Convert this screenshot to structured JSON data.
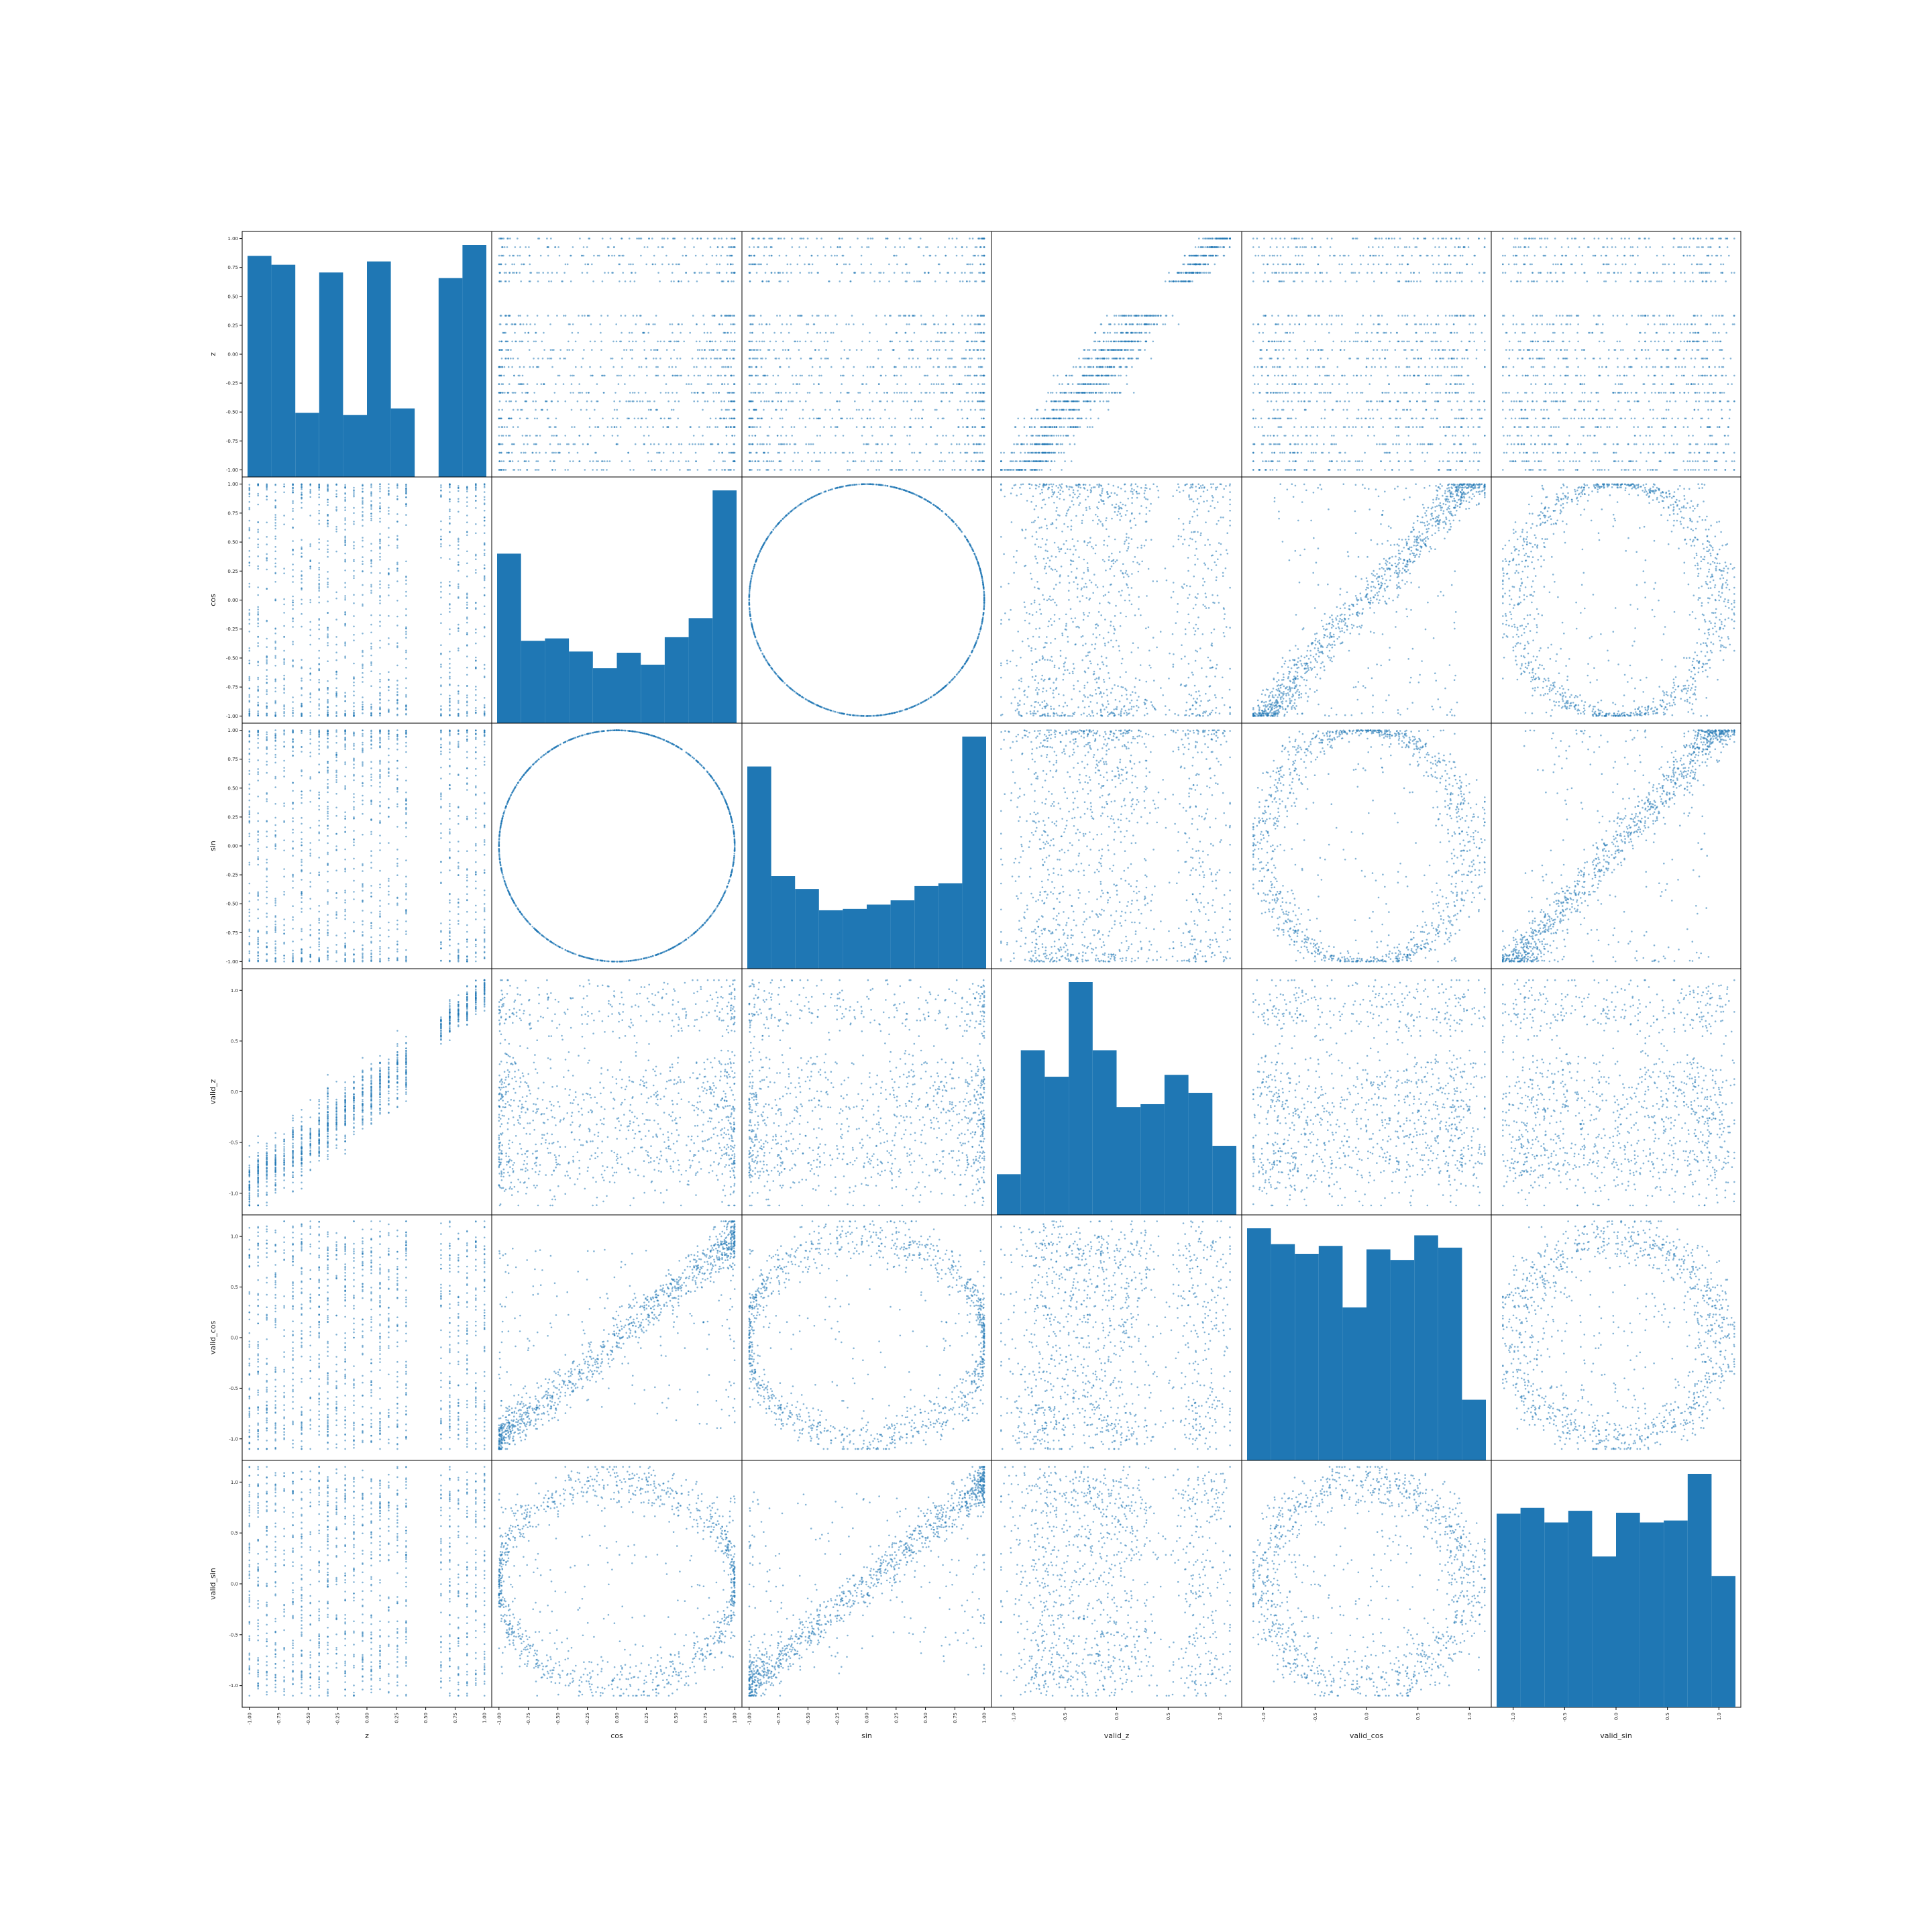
{
  "chart_data": {
    "type": "scatter_matrix",
    "variables": [
      "z",
      "cos",
      "sin",
      "valid_z",
      "valid_cos",
      "valid_sin"
    ],
    "ranges": {
      "z": [
        -1.05,
        1.05
      ],
      "cos": [
        -1.05,
        1.05
      ],
      "sin": [
        -1.05,
        1.05
      ],
      "valid_z": [
        -1.2,
        1.2
      ],
      "valid_cos": [
        -1.2,
        1.2
      ],
      "valid_sin": [
        -1.2,
        1.2
      ]
    },
    "ticks": {
      "z": [
        "-1.00",
        "-0.75",
        "-0.50",
        "-0.25",
        "0.00",
        "0.25",
        "0.50",
        "0.75",
        "1.00"
      ],
      "cos": [
        "-1.00",
        "-0.75",
        "-0.50",
        "-0.25",
        "0.00",
        "0.25",
        "0.50",
        "0.75",
        "1.00"
      ],
      "sin": [
        "-1.00",
        "-0.75",
        "-0.50",
        "-0.25",
        "0.00",
        "0.25",
        "0.50",
        "0.75",
        "1.00"
      ],
      "valid_z": [
        "-1.0",
        "-0.5",
        "0.0",
        "0.5",
        "1.0"
      ],
      "valid_cos": [
        "-1.0",
        "-0.5",
        "0.0",
        "0.5",
        "1.0"
      ],
      "valid_sin": [
        "-1.0",
        "-0.5",
        "0.0",
        "0.5",
        "1.0"
      ]
    },
    "tick_values": {
      "z": [
        -1,
        -0.75,
        -0.5,
        -0.25,
        0,
        0.25,
        0.5,
        0.75,
        1
      ],
      "cos": [
        -1,
        -0.75,
        -0.5,
        -0.25,
        0,
        0.25,
        0.5,
        0.75,
        1
      ],
      "sin": [
        -1,
        -0.75,
        -0.5,
        -0.25,
        0,
        0.25,
        0.5,
        0.75,
        1
      ],
      "valid_z": [
        -1,
        -0.5,
        0,
        0.5,
        1
      ],
      "valid_cos": [
        -1,
        -0.5,
        0,
        0.5,
        1
      ],
      "valid_sin": [
        -1,
        -0.5,
        0,
        0.5,
        1
      ]
    },
    "z_levels": [
      -1.0,
      -0.926,
      -0.852,
      -0.778,
      -0.704,
      -0.63,
      -0.556,
      -0.481,
      -0.407,
      -0.333,
      -0.259,
      -0.185,
      -0.111,
      -0.037,
      0.037,
      0.111,
      0.185,
      0.259,
      0.333,
      0.63,
      0.704,
      0.778,
      0.852,
      0.926,
      1.0
    ],
    "histograms": {
      "z": {
        "edges": [
          -1.0,
          -0.8,
          -0.6,
          -0.4,
          -0.2,
          0.0,
          0.2,
          0.4,
          0.6,
          0.8,
          1.0
        ],
        "counts": [
          2000,
          1920,
          580,
          1850,
          560,
          1950,
          620,
          0,
          1800,
          2100
        ]
      },
      "cos": {
        "edges": [
          -1.0,
          -0.8,
          -0.6,
          -0.4,
          -0.2,
          0.0,
          0.2,
          0.4,
          0.6,
          0.8,
          1.0
        ],
        "counts": [
          1420,
          690,
          710,
          600,
          460,
          590,
          490,
          720,
          880,
          1950
        ]
      },
      "sin": {
        "edges": [
          -1.0,
          -0.8,
          -0.6,
          -0.4,
          -0.2,
          0.0,
          0.2,
          0.4,
          0.6,
          0.8,
          1.0
        ],
        "counts": [
          1420,
          650,
          560,
          410,
          420,
          450,
          480,
          580,
          600,
          1630
        ]
      },
      "valid_z": {
        "edges": [
          -1.0,
          -0.78,
          -0.56,
          -0.34,
          -0.12,
          0.1,
          0.32,
          0.54,
          0.76,
          0.98,
          1.2
        ],
        "counts": [
          430,
          1740,
          1460,
          2460,
          1740,
          1140,
          1170,
          1480,
          1290,
          730
        ]
      },
      "valid_cos": {
        "edges": [
          -1.08,
          -0.85,
          -0.62,
          -0.39,
          -0.16,
          0.07,
          0.3,
          0.53,
          0.76,
          0.99,
          1.22
        ],
        "counts": [
          2640,
          2460,
          2350,
          2440,
          1740,
          2400,
          2280,
          2560,
          2420,
          690
        ]
      },
      "valid_sin": {
        "edges": [
          -1.08,
          -0.85,
          -0.62,
          -0.39,
          -0.16,
          0.07,
          0.3,
          0.53,
          0.76,
          0.99,
          1.22
        ],
        "counts": [
          1990,
          2050,
          1900,
          2020,
          1550,
          2000,
          1900,
          1920,
          2400,
          1350
        ]
      }
    },
    "series_color": "#1f77b4",
    "diagonal": "hist",
    "grid": false
  }
}
